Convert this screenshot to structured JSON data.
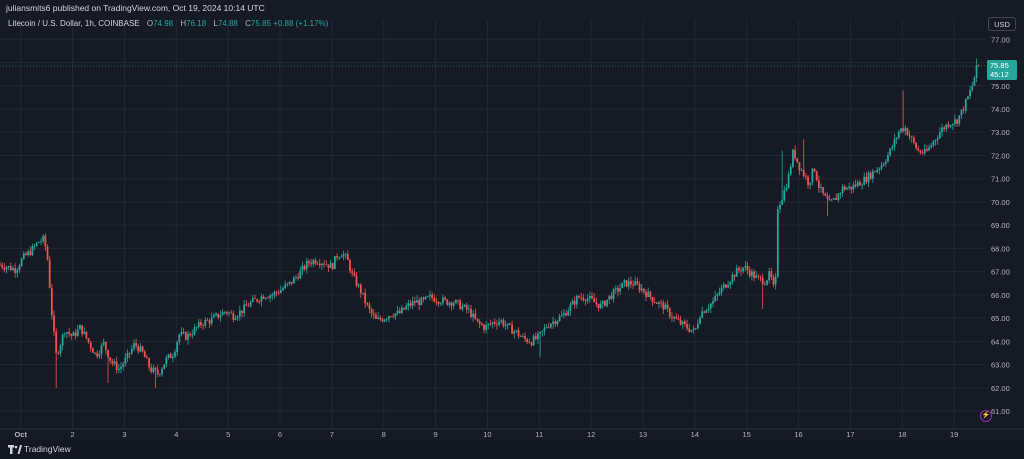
{
  "header": {
    "published": "juliansmits6 published on TradingView.com, Oct 19, 2024 10:14 UTC"
  },
  "legend": {
    "symbol": "Litecoin / U.S. Dollar, 1h, COINBASE",
    "open_label": "O",
    "open": "74.98",
    "high_label": "H",
    "high": "76.18",
    "low_label": "L",
    "low": "74.88",
    "close_label": "C",
    "close": "75.85",
    "change": "+0.88 (+1.17%)"
  },
  "currency": "USD",
  "price_tag": {
    "price": "75.85",
    "countdown": "45:12"
  },
  "footer": {
    "brand": "TradingView"
  },
  "colors": {
    "up": "#26a69a",
    "down": "#ef5350",
    "background": "#161a25",
    "grid": "#232733"
  },
  "icons": {
    "logo": "tradingview-logo-icon",
    "lightning": "lightning-icon"
  },
  "chart_data": {
    "type": "candlestick",
    "title": "Litecoin / U.S. Dollar, 1h, COINBASE",
    "x_ticks": [
      {
        "label": "Oct",
        "day": 1
      },
      {
        "label": "2",
        "day": 2
      },
      {
        "label": "3",
        "day": 3
      },
      {
        "label": "4",
        "day": 4
      },
      {
        "label": "5",
        "day": 5
      },
      {
        "label": "6",
        "day": 6
      },
      {
        "label": "7",
        "day": 7
      },
      {
        "label": "8",
        "day": 8
      },
      {
        "label": "9",
        "day": 9
      },
      {
        "label": "10",
        "day": 10
      },
      {
        "label": "11",
        "day": 11
      },
      {
        "label": "12",
        "day": 12
      },
      {
        "label": "13",
        "day": 13
      },
      {
        "label": "14",
        "day": 14
      },
      {
        "label": "15",
        "day": 15
      },
      {
        "label": "16",
        "day": 16
      },
      {
        "label": "17",
        "day": 17
      },
      {
        "label": "18",
        "day": 18
      },
      {
        "label": "19",
        "day": 19
      }
    ],
    "y_ticks": [
      "61.00",
      "62.00",
      "63.00",
      "64.00",
      "65.00",
      "66.00",
      "67.00",
      "68.00",
      "69.00",
      "70.00",
      "71.00",
      "72.00",
      "73.00",
      "74.00",
      "75.00",
      "76.00",
      "77.00"
    ],
    "ylim": [
      60.4,
      77.4
    ],
    "xlim": [
      0.6,
      19.48
    ],
    "grid": true,
    "close_path": [
      [
        0.6,
        67.3
      ],
      [
        0.75,
        67.2
      ],
      [
        0.9,
        67.1
      ],
      [
        1.05,
        67.6
      ],
      [
        1.2,
        67.9
      ],
      [
        1.35,
        68.3
      ],
      [
        1.45,
        68.4
      ],
      [
        1.52,
        67.5
      ],
      [
        1.6,
        65.2
      ],
      [
        1.68,
        63.4
      ],
      [
        1.75,
        63.8
      ],
      [
        1.85,
        64.5
      ],
      [
        2.0,
        64.2
      ],
      [
        2.15,
        64.6
      ],
      [
        2.3,
        64.0
      ],
      [
        2.45,
        63.4
      ],
      [
        2.6,
        63.9
      ],
      [
        2.75,
        63.1
      ],
      [
        2.9,
        62.8
      ],
      [
        3.05,
        63.3
      ],
      [
        3.2,
        63.9
      ],
      [
        3.35,
        63.5
      ],
      [
        3.5,
        62.8
      ],
      [
        3.65,
        62.6
      ],
      [
        3.8,
        63.2
      ],
      [
        3.95,
        63.5
      ],
      [
        4.05,
        64.3
      ],
      [
        4.2,
        64.2
      ],
      [
        4.35,
        64.5
      ],
      [
        4.5,
        64.8
      ],
      [
        4.65,
        64.9
      ],
      [
        4.8,
        65.1
      ],
      [
        4.95,
        65.3
      ],
      [
        5.1,
        65.1
      ],
      [
        5.25,
        65.3
      ],
      [
        5.4,
        65.6
      ],
      [
        5.55,
        65.8
      ],
      [
        5.7,
        66.0
      ],
      [
        5.85,
        66.0
      ],
      [
        6.0,
        66.2
      ],
      [
        6.2,
        66.5
      ],
      [
        6.4,
        67.0
      ],
      [
        6.55,
        67.4
      ],
      [
        6.7,
        67.5
      ],
      [
        6.85,
        67.4
      ],
      [
        7.0,
        67.2
      ],
      [
        7.1,
        67.7
      ],
      [
        7.2,
        67.8
      ],
      [
        7.3,
        67.5
      ],
      [
        7.4,
        66.8
      ],
      [
        7.55,
        66.2
      ],
      [
        7.7,
        65.4
      ],
      [
        7.85,
        64.9
      ],
      [
        8.0,
        65.0
      ],
      [
        8.15,
        65.2
      ],
      [
        8.3,
        65.2
      ],
      [
        8.45,
        65.5
      ],
      [
        8.6,
        65.7
      ],
      [
        8.75,
        65.7
      ],
      [
        8.9,
        65.9
      ],
      [
        9.05,
        65.8
      ],
      [
        9.2,
        65.7
      ],
      [
        9.35,
        65.7
      ],
      [
        9.5,
        65.5
      ],
      [
        9.65,
        65.3
      ],
      [
        9.8,
        64.8
      ],
      [
        9.95,
        64.6
      ],
      [
        10.1,
        64.8
      ],
      [
        10.25,
        64.9
      ],
      [
        10.4,
        64.6
      ],
      [
        10.55,
        64.4
      ],
      [
        10.7,
        64.1
      ],
      [
        10.85,
        64.0
      ],
      [
        11.0,
        64.2
      ],
      [
        11.15,
        64.7
      ],
      [
        11.3,
        64.9
      ],
      [
        11.45,
        65.1
      ],
      [
        11.6,
        65.5
      ],
      [
        11.75,
        65.9
      ],
      [
        11.9,
        65.9
      ],
      [
        12.05,
        65.7
      ],
      [
        12.2,
        65.5
      ],
      [
        12.35,
        65.9
      ],
      [
        12.5,
        66.2
      ],
      [
        12.65,
        66.5
      ],
      [
        12.8,
        66.5
      ],
      [
        12.95,
        66.3
      ],
      [
        13.1,
        66.0
      ],
      [
        13.25,
        65.7
      ],
      [
        13.4,
        65.5
      ],
      [
        13.55,
        65.1
      ],
      [
        13.7,
        64.8
      ],
      [
        13.85,
        64.6
      ],
      [
        14.0,
        64.4
      ],
      [
        14.1,
        65.2
      ],
      [
        14.2,
        65.4
      ],
      [
        14.35,
        65.7
      ],
      [
        14.5,
        66.2
      ],
      [
        14.65,
        66.6
      ],
      [
        14.8,
        67.0
      ],
      [
        14.95,
        67.2
      ],
      [
        15.05,
        67.0
      ],
      [
        15.2,
        66.7
      ],
      [
        15.35,
        66.6
      ],
      [
        15.45,
        66.9
      ],
      [
        15.55,
        66.0
      ],
      [
        15.6,
        69.8
      ],
      [
        15.7,
        70.3
      ],
      [
        15.8,
        71.0
      ],
      [
        15.9,
        72.2
      ],
      [
        16.0,
        71.6
      ],
      [
        16.1,
        71.2
      ],
      [
        16.2,
        70.8
      ],
      [
        16.3,
        71.5
      ],
      [
        16.4,
        70.6
      ],
      [
        16.5,
        70.2
      ],
      [
        16.6,
        69.9
      ],
      [
        16.7,
        70.1
      ],
      [
        16.85,
        70.6
      ],
      [
        17.0,
        70.6
      ],
      [
        17.15,
        70.8
      ],
      [
        17.3,
        71.0
      ],
      [
        17.45,
        71.3
      ],
      [
        17.6,
        71.6
      ],
      [
        17.75,
        72.1
      ],
      [
        17.85,
        72.6
      ],
      [
        17.95,
        73.1
      ],
      [
        18.05,
        73.2
      ],
      [
        18.15,
        72.8
      ],
      [
        18.3,
        72.2
      ],
      [
        18.45,
        72.1
      ],
      [
        18.6,
        72.6
      ],
      [
        18.75,
        73.1
      ],
      [
        18.9,
        73.4
      ],
      [
        19.05,
        73.5
      ],
      [
        19.15,
        73.9
      ],
      [
        19.25,
        74.4
      ],
      [
        19.35,
        75.0
      ],
      [
        19.45,
        75.85
      ]
    ],
    "spikes": [
      {
        "day": 1.7,
        "low": 62.0
      },
      {
        "day": 2.7,
        "low": 62.2
      },
      {
        "day": 3.6,
        "low": 62.0
      },
      {
        "day": 11.0,
        "low": 63.3
      },
      {
        "day": 15.3,
        "low": 65.4
      },
      {
        "day": 15.7,
        "high": 72.2
      },
      {
        "day": 16.1,
        "high": 72.7
      },
      {
        "day": 16.55,
        "low": 69.4
      },
      {
        "day": 18.0,
        "high": 74.8
      },
      {
        "day": 19.45,
        "high": 76.18
      }
    ],
    "last_price": 75.85
  }
}
